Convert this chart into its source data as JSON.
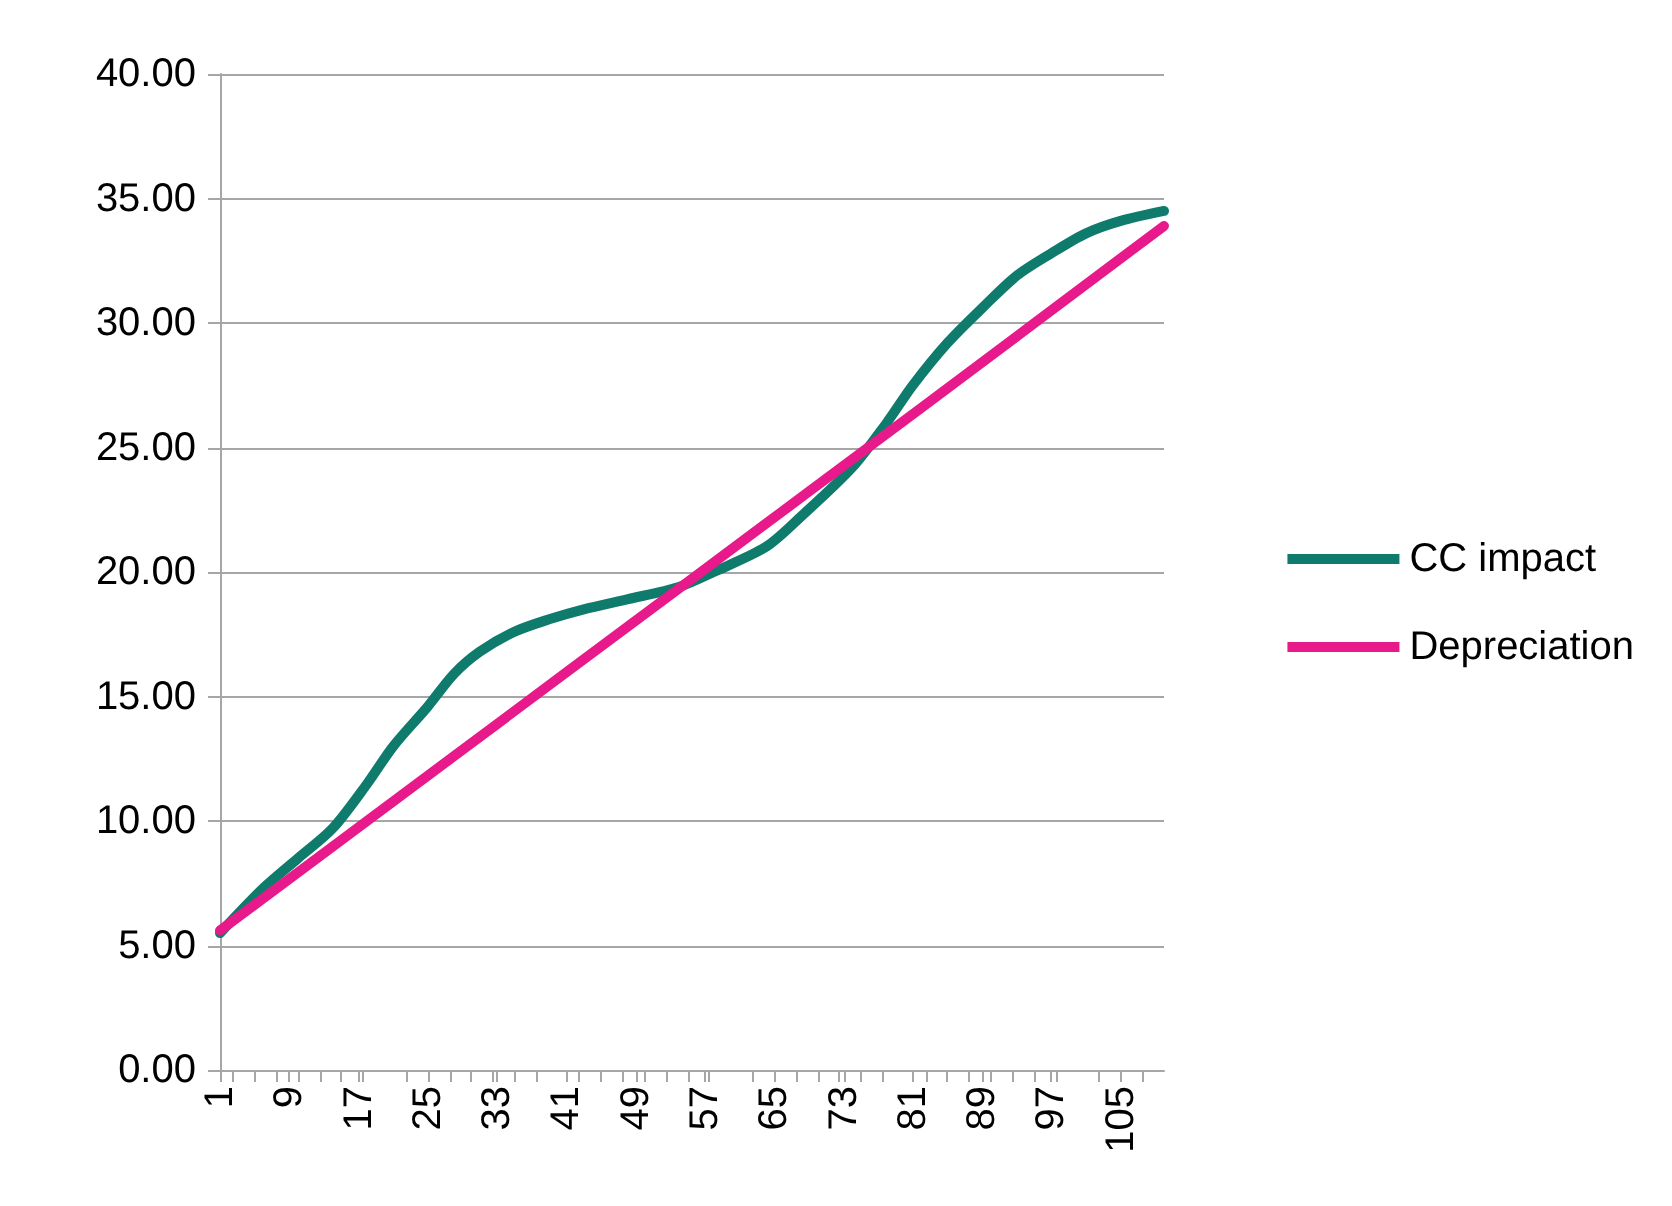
{
  "chart_data": {
    "type": "line",
    "xlim": [
      1,
      110
    ],
    "xticks": [
      1,
      9,
      17,
      25,
      33,
      41,
      49,
      57,
      65,
      73,
      81,
      89,
      97,
      105
    ],
    "ylim": [
      0,
      40
    ],
    "yticks": [
      {
        "value": 0,
        "label": "0.00"
      },
      {
        "value": 5,
        "label": "5.00"
      },
      {
        "value": 10,
        "label": "10.00"
      },
      {
        "value": 15,
        "label": "15.00"
      },
      {
        "value": 20,
        "label": "20.00"
      },
      {
        "value": 25,
        "label": "25.00"
      },
      {
        "value": 30,
        "label": "30.00"
      },
      {
        "value": 35,
        "label": "35.00"
      },
      {
        "value": 40,
        "label": "40.00"
      }
    ],
    "series": [
      {
        "name": "CC impact",
        "color": "#0f7b6c",
        "x": [
          1,
          6,
          10,
          14,
          18,
          21,
          25,
          28,
          31,
          35,
          39,
          43,
          48,
          54,
          58,
          64,
          68,
          74,
          78,
          81,
          85,
          89,
          93,
          97,
          101,
          105,
          110
        ],
        "values": [
          5.5,
          7.3,
          8.5,
          9.7,
          11.5,
          13.0,
          14.6,
          15.9,
          16.8,
          17.6,
          18.1,
          18.5,
          18.9,
          19.4,
          20.0,
          21.0,
          22.2,
          24.2,
          26.0,
          27.5,
          29.2,
          30.6,
          31.9,
          32.8,
          33.6,
          34.1,
          34.5
        ]
      },
      {
        "name": "Depreciation",
        "color": "#e8198b",
        "x": [
          1,
          28,
          55,
          82,
          110
        ],
        "values": [
          5.6,
          12.6,
          19.6,
          26.6,
          33.9
        ]
      }
    ],
    "grid": "y",
    "legend": "right",
    "marker": "none",
    "line_style": "solid"
  }
}
